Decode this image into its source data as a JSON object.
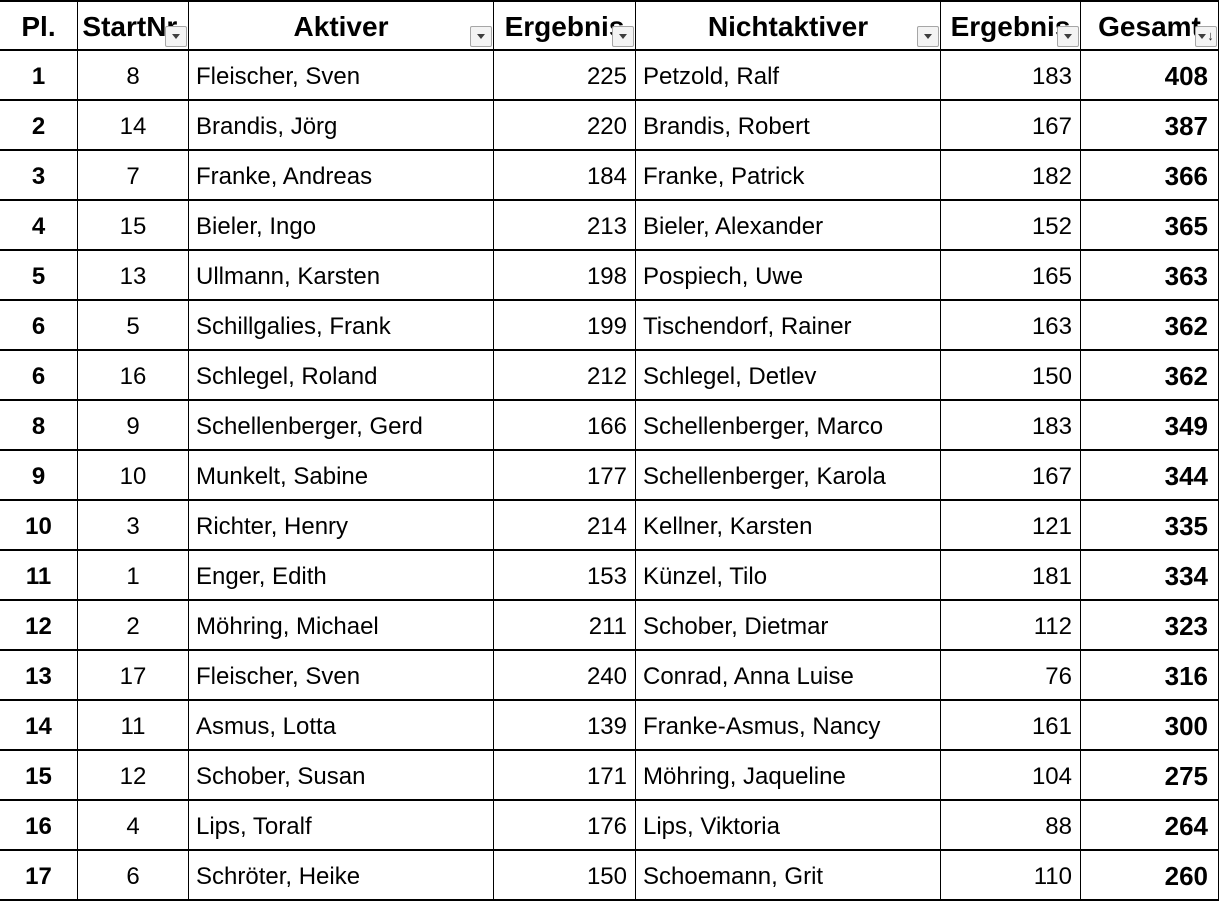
{
  "colors": {
    "background": "#ffffff",
    "grid_line": "#000000",
    "text": "#000000",
    "filter_button_bg": "#f3f3f3",
    "filter_button_border": "#a6a6a6",
    "filter_arrow": "#3d3d3d"
  },
  "icons": {
    "filter_dropdown": "▾",
    "sort_descending": "↓"
  },
  "table": {
    "columns": [
      {
        "id": "pl",
        "label": "Pl.",
        "has_filter": false
      },
      {
        "id": "start_nr",
        "label": "StartNr.",
        "has_filter": true
      },
      {
        "id": "aktiver",
        "label": "Aktiver",
        "has_filter": true
      },
      {
        "id": "aktiver_ergebnis",
        "label": "Ergebnis",
        "has_filter": true
      },
      {
        "id": "nichtaktiver",
        "label": "Nichtaktiver",
        "has_filter": true
      },
      {
        "id": "nichtaktiver_ergebnis",
        "label": "Ergebnis",
        "has_filter": true
      },
      {
        "id": "gesamt",
        "label": "Gesamt",
        "has_filter": true,
        "sort": "descending"
      }
    ],
    "rows": [
      {
        "pl": "1",
        "start_nr": "8",
        "aktiver": "Fleischer, Sven",
        "aktiver_ergebnis": "225",
        "nichtaktiver": "Petzold, Ralf",
        "nichtaktiver_ergebnis": "183",
        "gesamt": "408"
      },
      {
        "pl": "2",
        "start_nr": "14",
        "aktiver": "Brandis, Jörg",
        "aktiver_ergebnis": "220",
        "nichtaktiver": "Brandis, Robert",
        "nichtaktiver_ergebnis": "167",
        "gesamt": "387"
      },
      {
        "pl": "3",
        "start_nr": "7",
        "aktiver": "Franke, Andreas",
        "aktiver_ergebnis": "184",
        "nichtaktiver": "Franke, Patrick",
        "nichtaktiver_ergebnis": "182",
        "gesamt": "366"
      },
      {
        "pl": "4",
        "start_nr": "15",
        "aktiver": "Bieler, Ingo",
        "aktiver_ergebnis": "213",
        "nichtaktiver": "Bieler, Alexander",
        "nichtaktiver_ergebnis": "152",
        "gesamt": "365"
      },
      {
        "pl": "5",
        "start_nr": "13",
        "aktiver": "Ullmann, Karsten",
        "aktiver_ergebnis": "198",
        "nichtaktiver": "Pospiech, Uwe",
        "nichtaktiver_ergebnis": "165",
        "gesamt": "363"
      },
      {
        "pl": "6",
        "start_nr": "5",
        "aktiver": "Schillgalies, Frank",
        "aktiver_ergebnis": "199",
        "nichtaktiver": "Tischendorf, Rainer",
        "nichtaktiver_ergebnis": "163",
        "gesamt": "362"
      },
      {
        "pl": "6",
        "start_nr": "16",
        "aktiver": "Schlegel, Roland",
        "aktiver_ergebnis": "212",
        "nichtaktiver": "Schlegel, Detlev",
        "nichtaktiver_ergebnis": "150",
        "gesamt": "362"
      },
      {
        "pl": "8",
        "start_nr": "9",
        "aktiver": "Schellenberger, Gerd",
        "aktiver_ergebnis": "166",
        "nichtaktiver": "Schellenberger, Marco",
        "nichtaktiver_ergebnis": "183",
        "gesamt": "349"
      },
      {
        "pl": "9",
        "start_nr": "10",
        "aktiver": "Munkelt, Sabine",
        "aktiver_ergebnis": "177",
        "nichtaktiver": "Schellenberger, Karola",
        "nichtaktiver_ergebnis": "167",
        "gesamt": "344"
      },
      {
        "pl": "10",
        "start_nr": "3",
        "aktiver": "Richter, Henry",
        "aktiver_ergebnis": "214",
        "nichtaktiver": "Kellner, Karsten",
        "nichtaktiver_ergebnis": "121",
        "gesamt": "335"
      },
      {
        "pl": "11",
        "start_nr": "1",
        "aktiver": "Enger, Edith",
        "aktiver_ergebnis": "153",
        "nichtaktiver": "Künzel, Tilo",
        "nichtaktiver_ergebnis": "181",
        "gesamt": "334"
      },
      {
        "pl": "12",
        "start_nr": "2",
        "aktiver": "Möhring, Michael",
        "aktiver_ergebnis": "211",
        "nichtaktiver": "Schober, Dietmar",
        "nichtaktiver_ergebnis": "112",
        "gesamt": "323"
      },
      {
        "pl": "13",
        "start_nr": "17",
        "aktiver": "Fleischer, Sven",
        "aktiver_ergebnis": "240",
        "nichtaktiver": "Conrad, Anna Luise",
        "nichtaktiver_ergebnis": "76",
        "gesamt": "316"
      },
      {
        "pl": "14",
        "start_nr": "11",
        "aktiver": "Asmus, Lotta",
        "aktiver_ergebnis": "139",
        "nichtaktiver": "Franke-Asmus, Nancy",
        "nichtaktiver_ergebnis": "161",
        "gesamt": "300"
      },
      {
        "pl": "15",
        "start_nr": "12",
        "aktiver": "Schober, Susan",
        "aktiver_ergebnis": "171",
        "nichtaktiver": "Möhring, Jaqueline",
        "nichtaktiver_ergebnis": "104",
        "gesamt": "275"
      },
      {
        "pl": "16",
        "start_nr": "4",
        "aktiver": "Lips, Toralf",
        "aktiver_ergebnis": "176",
        "nichtaktiver": "Lips, Viktoria",
        "nichtaktiver_ergebnis": "88",
        "gesamt": "264"
      },
      {
        "pl": "17",
        "start_nr": "6",
        "aktiver": "Schröter, Heike",
        "aktiver_ergebnis": "150",
        "nichtaktiver": "Schoemann, Grit",
        "nichtaktiver_ergebnis": "110",
        "gesamt": "260"
      }
    ]
  }
}
